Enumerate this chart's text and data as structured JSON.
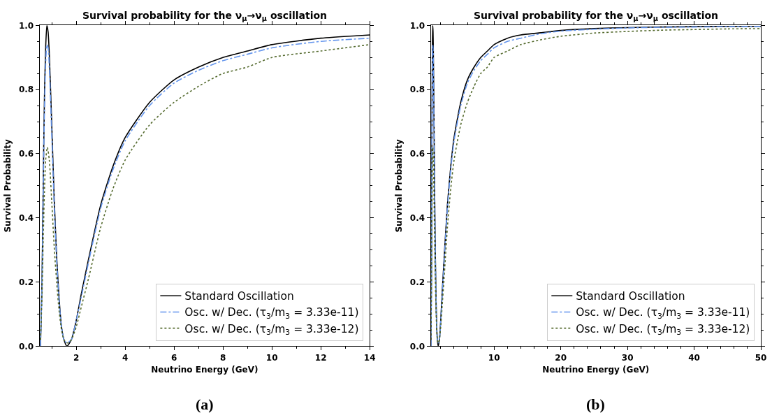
{
  "chart_data": [
    {
      "type": "line",
      "title": "Survival probability for the ν$_{μ}$→ν$_{μ}$ oscillation",
      "xlabel": "Neutrino Energy (GeV)",
      "ylabel": "Survival Probability",
      "annotations": [
        "(a)"
      ],
      "xlim": [
        0.5,
        14
      ],
      "xticks": [
        2,
        4,
        6,
        8,
        10,
        12,
        14
      ],
      "ylim": [
        0,
        1
      ],
      "yticks": [
        {
          "value": 0,
          "label": "0.0"
        },
        {
          "value": 0.2,
          "label": "0.2"
        },
        {
          "value": 0.4,
          "label": "0.4"
        },
        {
          "value": 0.6,
          "label": "0.6"
        },
        {
          "value": 0.8,
          "label": "0.8"
        },
        {
          "value": 1,
          "label": "1.0"
        }
      ],
      "legend": "bottom right",
      "marker": "none",
      "series": [
        {
          "name": "Standard Oscillation",
          "color": "#000000",
          "line_style": "solid",
          "x": [
            0.54,
            0.6,
            0.65,
            0.7,
            0.75,
            0.8,
            0.85,
            0.9,
            1.0,
            1.1,
            1.2,
            1.3,
            1.4,
            1.5,
            1.62,
            1.8,
            2.0,
            2.2,
            2.5,
            3.0,
            3.5,
            4,
            5,
            6,
            7,
            8,
            9,
            10,
            12,
            14
          ],
          "values": [
            0.0,
            0.2,
            0.5,
            0.77,
            0.93,
            1.0,
            0.98,
            0.91,
            0.69,
            0.46,
            0.28,
            0.15,
            0.06,
            0.02,
            0.0,
            0.02,
            0.08,
            0.16,
            0.27,
            0.44,
            0.56,
            0.65,
            0.76,
            0.83,
            0.87,
            0.9,
            0.92,
            0.94,
            0.96,
            0.97
          ]
        },
        {
          "name": "Osc. w/ Dec. (τ$_{3}$/m$_{3}$ = 3.33e-11)",
          "color": "#6495ed",
          "line_style": "dashdot",
          "x": [
            0.54,
            0.6,
            0.65,
            0.7,
            0.75,
            0.8,
            0.85,
            0.9,
            1.0,
            1.1,
            1.2,
            1.3,
            1.4,
            1.5,
            1.62,
            1.8,
            2.0,
            2.2,
            2.5,
            3.0,
            3.5,
            4,
            5,
            6,
            7,
            8,
            9,
            10,
            12,
            14
          ],
          "values": [
            0.0,
            0.19,
            0.48,
            0.73,
            0.88,
            0.94,
            0.93,
            0.87,
            0.66,
            0.44,
            0.27,
            0.14,
            0.06,
            0.02,
            0.01,
            0.02,
            0.08,
            0.15,
            0.26,
            0.43,
            0.55,
            0.64,
            0.75,
            0.82,
            0.86,
            0.89,
            0.91,
            0.93,
            0.95,
            0.96
          ]
        },
        {
          "name": "Osc. w/ Dec. (τ$_{3}$/m$_{3}$ = 3.33e-12)",
          "color": "#556b2f",
          "line_style": "dotted",
          "x": [
            0.54,
            0.6,
            0.65,
            0.7,
            0.75,
            0.82,
            0.9,
            1.0,
            1.1,
            1.2,
            1.3,
            1.4,
            1.5,
            1.65,
            1.8,
            2.0,
            2.2,
            2.5,
            3.0,
            3.5,
            4,
            5,
            6,
            7,
            8,
            9,
            10,
            12,
            14
          ],
          "values": [
            0.02,
            0.15,
            0.33,
            0.48,
            0.58,
            0.62,
            0.58,
            0.45,
            0.31,
            0.2,
            0.11,
            0.05,
            0.02,
            0.01,
            0.02,
            0.06,
            0.12,
            0.21,
            0.37,
            0.49,
            0.58,
            0.69,
            0.76,
            0.81,
            0.85,
            0.87,
            0.9,
            0.92,
            0.94
          ]
        }
      ]
    },
    {
      "type": "line",
      "title": "Survival probability for the ν$_{μ}$→ν$_{μ}$ oscillation",
      "xlabel": "Neutrino Energy (GeV)",
      "ylabel": "Survival Probability",
      "annotations": [
        "(b)"
      ],
      "xlim": [
        0.5,
        50
      ],
      "xticks": [
        10,
        20,
        30,
        40,
        50
      ],
      "ylim": [
        0,
        1
      ],
      "yticks": [
        {
          "value": 0,
          "label": "0.0"
        },
        {
          "value": 0.2,
          "label": "0.2"
        },
        {
          "value": 0.4,
          "label": "0.4"
        },
        {
          "value": 0.6,
          "label": "0.6"
        },
        {
          "value": 0.8,
          "label": "0.8"
        },
        {
          "value": 1,
          "label": "1.0"
        }
      ],
      "legend": "bottom right",
      "marker": "none",
      "series": [
        {
          "name": "Standard Oscillation",
          "color": "#000000",
          "line_style": "solid",
          "x": [
            0.54,
            0.6,
            0.65,
            0.7,
            0.75,
            0.8,
            0.85,
            0.9,
            1.0,
            1.1,
            1.2,
            1.3,
            1.4,
            1.5,
            1.62,
            1.8,
            2.0,
            2.2,
            2.5,
            3.0,
            3.5,
            4,
            5,
            6,
            7,
            8,
            9,
            10,
            12,
            14,
            17,
            20,
            25,
            30,
            35,
            40,
            45,
            50
          ],
          "values": [
            0.0,
            0.2,
            0.5,
            0.77,
            0.93,
            1.0,
            0.98,
            0.91,
            0.69,
            0.46,
            0.28,
            0.15,
            0.06,
            0.02,
            0.0,
            0.02,
            0.08,
            0.16,
            0.27,
            0.44,
            0.56,
            0.65,
            0.76,
            0.83,
            0.87,
            0.9,
            0.92,
            0.94,
            0.96,
            0.97,
            0.977,
            0.984,
            0.99,
            0.993,
            0.995,
            0.996,
            0.997,
            0.997
          ]
        },
        {
          "name": "Osc. w/ Dec. (τ$_{3}$/m$_{3}$ = 3.33e-11)",
          "color": "#6495ed",
          "line_style": "dashdot",
          "x": [
            0.54,
            0.6,
            0.65,
            0.7,
            0.75,
            0.8,
            0.85,
            0.9,
            1.0,
            1.1,
            1.2,
            1.3,
            1.4,
            1.5,
            1.62,
            1.8,
            2.0,
            2.2,
            2.5,
            3.0,
            3.5,
            4,
            5,
            6,
            7,
            8,
            9,
            10,
            12,
            14,
            17,
            20,
            25,
            30,
            35,
            40,
            45,
            50
          ],
          "values": [
            0.0,
            0.19,
            0.48,
            0.73,
            0.88,
            0.94,
            0.93,
            0.87,
            0.66,
            0.44,
            0.27,
            0.14,
            0.06,
            0.02,
            0.01,
            0.02,
            0.08,
            0.15,
            0.26,
            0.43,
            0.55,
            0.64,
            0.75,
            0.82,
            0.86,
            0.89,
            0.91,
            0.93,
            0.95,
            0.96,
            0.974,
            0.982,
            0.988,
            0.992,
            0.994,
            0.995,
            0.996,
            0.997
          ]
        },
        {
          "name": "Osc. w/ Dec. (τ$_{3}$/m$_{3}$ = 3.33e-12)",
          "color": "#556b2f",
          "line_style": "dotted",
          "x": [
            0.54,
            0.6,
            0.65,
            0.7,
            0.75,
            0.82,
            0.9,
            1.0,
            1.1,
            1.2,
            1.3,
            1.4,
            1.5,
            1.65,
            1.8,
            2.0,
            2.2,
            2.5,
            3.0,
            3.5,
            4,
            5,
            6,
            7,
            8,
            9,
            10,
            12,
            14,
            17,
            20,
            25,
            30,
            35,
            40,
            45,
            50
          ],
          "values": [
            0.02,
            0.15,
            0.33,
            0.48,
            0.58,
            0.62,
            0.58,
            0.45,
            0.31,
            0.2,
            0.11,
            0.05,
            0.02,
            0.01,
            0.02,
            0.06,
            0.12,
            0.21,
            0.37,
            0.49,
            0.58,
            0.69,
            0.76,
            0.81,
            0.85,
            0.87,
            0.9,
            0.92,
            0.94,
            0.955,
            0.966,
            0.976,
            0.981,
            0.985,
            0.987,
            0.989,
            0.99
          ]
        }
      ]
    }
  ]
}
